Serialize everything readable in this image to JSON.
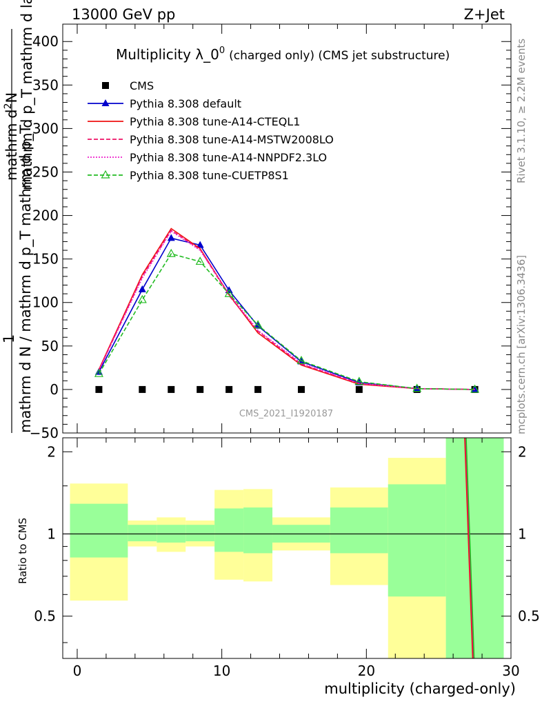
{
  "header": {
    "energy_label": "13000 GeV pp",
    "process_label": "Z+Jet"
  },
  "side_labels": {
    "rivet": "Rivet 3.1.10, ≥ 2.2M events",
    "mcplots": "mcplots.cern.ch [arXiv:1306.3436]"
  },
  "chart_data": [
    {
      "type": "line",
      "panel": "main",
      "title": "Multiplicity λ_0",
      "title_superscript": "0",
      "title_suffix": "(charged only) (CMS jet substructure)",
      "watermark": "CMS_2021_I1920187",
      "ylabel_numerator": "mathrm d²N",
      "ylabel_numerator_display": "mathrm d",
      "ylabel_numerator_sup": "2",
      "ylabel_numerator_tail": "N",
      "ylabel_numerator_rest": "mathrm d p_T mathrm d lambda",
      "ylabel_denominator_lead": "1",
      "ylabel_denominator": "mathrm d N / mathrm d p_T mathrm d p_T",
      "xlim": [
        -1,
        30
      ],
      "ylim": [
        -50,
        420
      ],
      "y_ticks": [
        -50,
        0,
        50,
        100,
        150,
        200,
        250,
        300,
        350,
        400
      ],
      "y_tick_labels": [
        "−50",
        "0",
        "50",
        "100",
        "150",
        "200",
        "250",
        "300",
        "350",
        "400"
      ],
      "legend_position": "top-left",
      "series": [
        {
          "name": "CMS",
          "kind": "data",
          "color": "#000000",
          "marker": "square",
          "x": [
            1.5,
            4.5,
            6.5,
            8.5,
            10.5,
            12.5,
            15.5,
            19.5,
            23.5,
            27.5
          ],
          "y": [
            0,
            0,
            0,
            0,
            0,
            0,
            0,
            0,
            0,
            0
          ]
        },
        {
          "name": "Pythia 8.308 default",
          "color": "#0000cc",
          "dash": "solid",
          "marker": "triangle-filled",
          "x": [
            1.5,
            4.5,
            6.5,
            8.5,
            10.5,
            12.5,
            15.5,
            19.5,
            23.5,
            27.5
          ],
          "y": [
            20,
            115,
            174,
            166,
            114,
            73,
            32,
            8,
            1,
            0
          ]
        },
        {
          "name": "Pythia 8.308 tune-A14-CTEQL1",
          "color": "#ee1111",
          "dash": "solid",
          "marker": "none",
          "x": [
            1.5,
            4.5,
            6.5,
            8.5,
            10.5,
            12.5,
            15.5,
            19.5,
            23.5,
            27.5
          ],
          "y": [
            23,
            132,
            185,
            162,
            109,
            65,
            28,
            6,
            1,
            0
          ]
        },
        {
          "name": "Pythia 8.308 tune-A14-MSTW2008LO",
          "color": "#ee1166",
          "dash": "dashed",
          "marker": "none",
          "x": [
            1.5,
            4.5,
            6.5,
            8.5,
            10.5,
            12.5,
            15.5,
            19.5,
            23.5,
            27.5
          ],
          "y": [
            22,
            130,
            183,
            161,
            108,
            67,
            29,
            7,
            1,
            0
          ]
        },
        {
          "name": "Pythia 8.308 tune-A14-NNPDF2.3LO",
          "color": "#ee22cc",
          "dash": "dotted",
          "marker": "none",
          "x": [
            1.5,
            4.5,
            6.5,
            8.5,
            10.5,
            12.5,
            15.5,
            19.5,
            23.5,
            27.5
          ],
          "y": [
            22,
            128,
            182,
            160,
            110,
            68,
            30,
            7,
            1,
            0
          ]
        },
        {
          "name": "Pythia 8.308 tune-CUETP8S1",
          "color": "#22bb22",
          "dash": "dashed",
          "marker": "triangle-open",
          "x": [
            1.5,
            4.5,
            6.5,
            8.5,
            10.5,
            12.5,
            15.5,
            19.5,
            23.5,
            27.5
          ],
          "y": [
            18,
            103,
            156,
            147,
            110,
            74,
            33,
            9,
            1,
            0
          ]
        }
      ]
    },
    {
      "type": "area",
      "panel": "ratio",
      "ylabel": "Ratio to CMS",
      "xlabel": "multiplicity (charged-only)",
      "xlim": [
        -1,
        30
      ],
      "ylim": [
        0.35,
        2.25
      ],
      "x_ticks": [
        0,
        10,
        20,
        30
      ],
      "y_ticks": [
        0.5,
        1,
        2
      ],
      "y_tick_labels": [
        "0.5",
        "1",
        "2"
      ],
      "reference_line": 1,
      "band_colors": {
        "inner": "#99ff99",
        "outer": "#ffff99"
      },
      "bins": [
        {
          "lo": -0.5,
          "hi": 3.5,
          "inner": [
            0.82,
            1.29
          ],
          "outer": [
            0.57,
            1.53
          ]
        },
        {
          "lo": 3.5,
          "hi": 5.5,
          "inner": [
            0.94,
            1.08
          ],
          "outer": [
            0.9,
            1.12
          ]
        },
        {
          "lo": 5.5,
          "hi": 7.5,
          "inner": [
            0.93,
            1.08
          ],
          "outer": [
            0.86,
            1.15
          ]
        },
        {
          "lo": 7.5,
          "hi": 9.5,
          "inner": [
            0.94,
            1.08
          ],
          "outer": [
            0.9,
            1.12
          ]
        },
        {
          "lo": 9.5,
          "hi": 11.5,
          "inner": [
            0.86,
            1.24
          ],
          "outer": [
            0.68,
            1.45
          ]
        },
        {
          "lo": 11.5,
          "hi": 13.5,
          "inner": [
            0.85,
            1.25
          ],
          "outer": [
            0.67,
            1.46
          ]
        },
        {
          "lo": 13.5,
          "hi": 17.5,
          "inner": [
            0.93,
            1.08
          ],
          "outer": [
            0.87,
            1.15
          ]
        },
        {
          "lo": 17.5,
          "hi": 21.5,
          "inner": [
            0.85,
            1.25
          ],
          "outer": [
            0.65,
            1.48
          ]
        },
        {
          "lo": 21.5,
          "hi": 25.5,
          "inner": [
            0.59,
            1.52
          ],
          "outer": [
            0.35,
            1.9
          ]
        },
        {
          "lo": 25.5,
          "hi": 29.5,
          "inner": [
            0.35,
            2.25
          ],
          "outer": [
            0.35,
            2.25
          ]
        }
      ],
      "series": [
        {
          "name": "Pythia 8.308 tune-A14-CTEQL1",
          "color": "#ee1111",
          "x": [
            26.8,
            27.35
          ],
          "y": [
            2.25,
            0.35
          ]
        },
        {
          "name": "Pythia 8.308 tune-A14-MSTW2008LO",
          "color": "#ee1166",
          "x": [
            26.85,
            27.4
          ],
          "y": [
            2.25,
            0.35
          ]
        },
        {
          "name": "Pythia 8.308 tune-CUETP8S1",
          "color": "#22bb22",
          "x": [
            26.9,
            27.45
          ],
          "y": [
            2.25,
            0.35
          ]
        }
      ]
    }
  ]
}
